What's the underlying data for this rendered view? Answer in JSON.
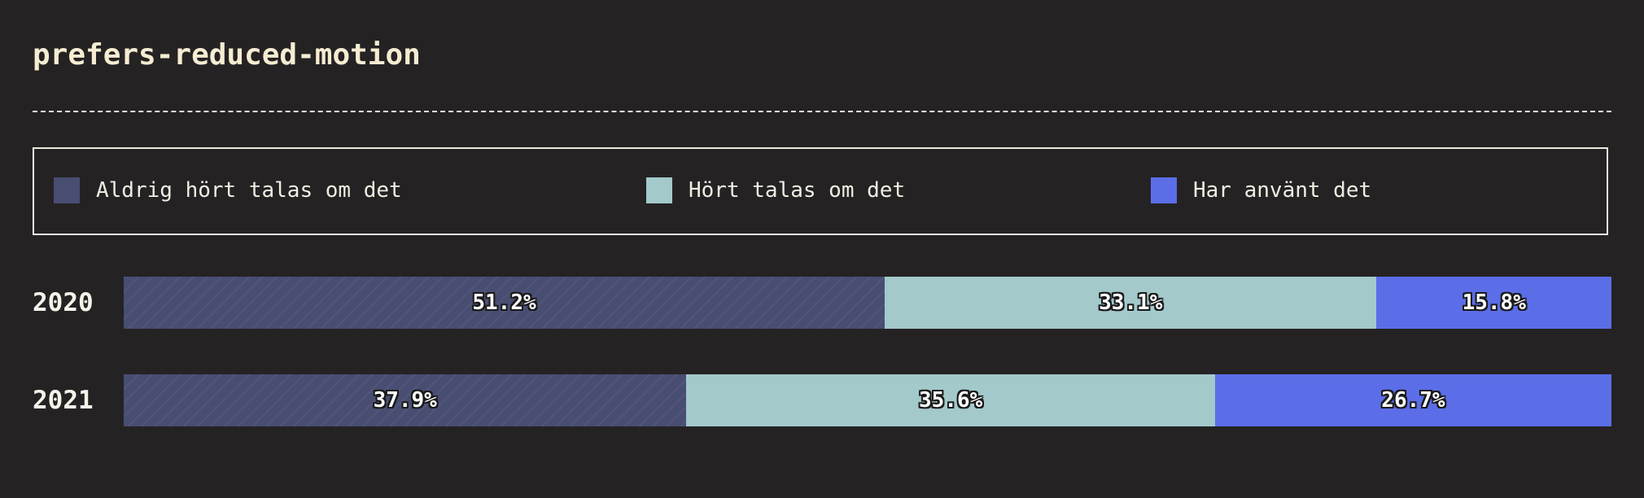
{
  "chart_data": {
    "type": "bar",
    "orientation": "horizontal",
    "stacked": true,
    "normalized": true,
    "title": "prefers-reduced-motion",
    "categories": [
      "2020",
      "2021"
    ],
    "series": [
      {
        "name": "Aldrig hört talas om det",
        "color": "#484d72",
        "values": [
          51.2,
          37.9
        ],
        "labels": [
          "51.2%",
          "37.9%"
        ]
      },
      {
        "name": "Hört talas om det",
        "color": "#a3c9cb",
        "values": [
          33.1,
          35.6
        ],
        "labels": [
          "33.1%",
          "35.6%"
        ]
      },
      {
        "name": "Har använt det",
        "color": "#5b6ee8",
        "values": [
          15.8,
          26.7
        ],
        "labels": [
          "15.8%",
          "26.7%"
        ]
      }
    ],
    "legend_position": "top",
    "unit": "%"
  }
}
